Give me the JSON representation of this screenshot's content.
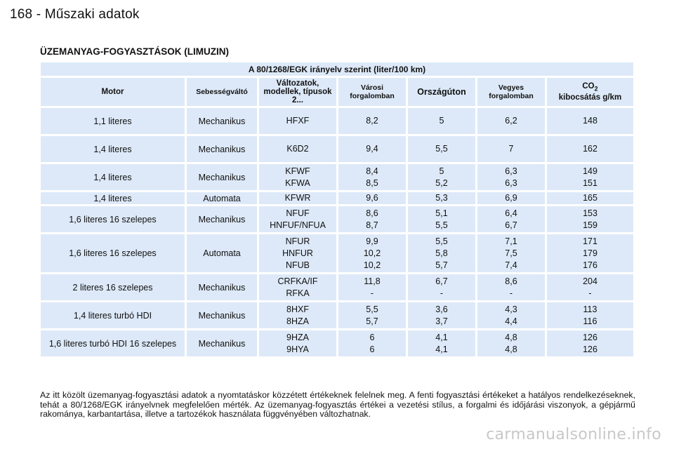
{
  "header": {
    "page": "168",
    "separator": " - ",
    "section": "Műszaki adatok"
  },
  "title": "ÜZEMANYAG-FOGYASZTÁSOK (LIMUZIN)",
  "table": {
    "directive": "A 80/1268/EGK irányelv szerint (liter/100 km)",
    "columns": {
      "motor": "Motor",
      "gearbox": "Sebességváltó",
      "variants": "Változatok, modellek, típusok 2...",
      "urban": "Városi forgalomban",
      "extra_urban": "Országúton",
      "combined": "Vegyes forgalomban",
      "co2_prefix": "CO",
      "co2_sub": "2",
      "co2_suffix": "kibocsátás g/km"
    },
    "rows": [
      {
        "motor": "1,1 literes",
        "gearbox": "Mechanikus",
        "variants": [
          "HFXF"
        ],
        "urban": [
          "8,2"
        ],
        "extra": [
          "5"
        ],
        "combined": [
          "6,2"
        ],
        "co2": [
          "148"
        ]
      },
      {
        "motor": "1,4 literes",
        "gearbox": "Mechanikus",
        "variants": [
          "K6D2"
        ],
        "urban": [
          "9,4"
        ],
        "extra": [
          "5,5"
        ],
        "combined": [
          "7"
        ],
        "co2": [
          "162"
        ]
      },
      {
        "motor": "1,4 literes",
        "gearbox": "Mechanikus",
        "variants": [
          "KFWF",
          "KFWA"
        ],
        "urban": [
          "8,4",
          "8,5"
        ],
        "extra": [
          "5",
          "5,2"
        ],
        "combined": [
          "6,3",
          "6,3"
        ],
        "co2": [
          "149",
          "151"
        ]
      },
      {
        "motor": "1,4 literes",
        "gearbox": "Automata",
        "variants": [
          "KFWR"
        ],
        "urban": [
          "9,6"
        ],
        "extra": [
          "5,3"
        ],
        "combined": [
          "6,9"
        ],
        "co2": [
          "165"
        ]
      },
      {
        "motor": "1,6 literes 16 szelepes",
        "gearbox": "Mechanikus",
        "variants": [
          "NFUF",
          "HNFUF/NFUA"
        ],
        "urban": [
          "8,6",
          "8,7"
        ],
        "extra": [
          "5,1",
          "5,5"
        ],
        "combined": [
          "6,4",
          "6,7"
        ],
        "co2": [
          "153",
          "159"
        ]
      },
      {
        "motor": "1,6 literes 16 szelepes",
        "gearbox": "Automata",
        "variants": [
          "NFUR",
          "HNFUR",
          "NFUB"
        ],
        "urban": [
          "9,9",
          "10,2",
          "10,2"
        ],
        "extra": [
          "5,5",
          "5,8",
          "5,7"
        ],
        "combined": [
          "7,1",
          "7,5",
          "7,4"
        ],
        "co2": [
          "171",
          "179",
          "176"
        ]
      },
      {
        "motor": "2 literes 16 szelepes",
        "gearbox": "Mechanikus",
        "variants": [
          "CRFKA/IF",
          "RFKA"
        ],
        "urban": [
          "11,8",
          "-"
        ],
        "extra": [
          "6,7",
          "-"
        ],
        "combined": [
          "8,6",
          "-"
        ],
        "co2": [
          "204",
          "-"
        ]
      },
      {
        "motor": "1,4 literes turbó HDI",
        "gearbox": "Mechanikus",
        "variants": [
          "8HXF",
          "8HZA"
        ],
        "urban": [
          "5,5",
          "5,7"
        ],
        "extra": [
          "3,6",
          "3,7"
        ],
        "combined": [
          "4,3",
          "4,4"
        ],
        "co2": [
          "113",
          "116"
        ]
      },
      {
        "motor": "1,6 literes turbó HDI 16 szelepes",
        "gearbox": "Mechanikus",
        "variants": [
          "9HZA",
          "9HYA"
        ],
        "urban": [
          "6",
          "6"
        ],
        "extra": [
          "4,1",
          "4,1"
        ],
        "combined": [
          "4,8",
          "4,8"
        ],
        "co2": [
          "126",
          "126"
        ]
      }
    ]
  },
  "footnote": "Az itt közölt üzemanyag-fogyasztási adatok a nyomtatáskor közzétett értékeknek felelnek meg. A fenti fogyasztási értékeket a hatályos rendelkezéseknek, tehát a 80/1268/EGK irányelvnek megfelelően mérték. Az üzemanyag-fogyasztás értékei a vezetési stílus, a forgalmi és időjárási viszonyok, a gépjármű rakománya, karbantartása, illetve a tartozékok használata függvényében változhatnak.",
  "watermark": "carmanualsonline.info"
}
